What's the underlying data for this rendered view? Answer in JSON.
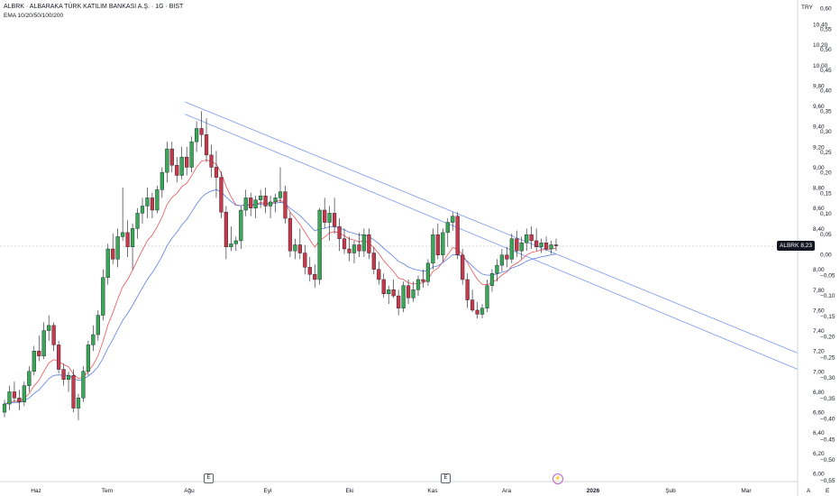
{
  "legend": {
    "title": "ALBRK · ALBARAKA TÜRK KATILIM BANKASI A.Ş. · 1G · BIST",
    "indicator": "EMA 10/20/50/100/200"
  },
  "axis": {
    "currency": "TRY",
    "price_ticks": [
      "10,40",
      "10,20",
      "10,00",
      "9,80",
      "9,60",
      "9,40",
      "9,20",
      "9,00",
      "8,80",
      "8,60",
      "8,40",
      "8,00",
      "7,80",
      "7,60",
      "7,40",
      "7,20",
      "7,00",
      "6,80",
      "6,60",
      "6,40",
      "6,20",
      "6,00"
    ],
    "pct_ticks": [
      "0,60",
      "0,55",
      "0,50",
      "0,45",
      "0,40",
      "0,35",
      "0,30",
      "0,25",
      "0,20",
      "0,15",
      "0,10",
      "0,05",
      "0,00",
      "−0,05",
      "−0,10",
      "−0,15",
      "−0,20",
      "−0,25",
      "−0,30",
      "−0,35",
      "−0,40",
      "−0,45",
      "−0,50",
      "−0,55"
    ],
    "month_labels": [
      "Haz",
      "Tem",
      "Ağu",
      "Eyl",
      "Eki",
      "Kas",
      "Ara",
      "2026",
      "Şub",
      "Mar"
    ]
  },
  "price_tag": {
    "symbol": "ALBRK",
    "value": "8,23"
  },
  "events": {
    "earnings_1": "E",
    "earnings_2": "E",
    "dividend": "⚡"
  },
  "corner": {
    "auto": "A",
    "log": "E"
  },
  "colors": {
    "up": "#26a69a",
    "up_body": "#3aa757",
    "down": "#c6394b",
    "ema_fast": "#e8555a",
    "ema_slow": "#5b7fe0",
    "trend": "#7b97ea"
  },
  "chart_data": {
    "type": "candlestick",
    "symbol": "ALBRK",
    "timeframe": "1G",
    "y_range": [
      6.0,
      10.5
    ],
    "last_price": 8.23,
    "candles": [
      [
        6.6,
        6.72,
        6.55,
        6.68
      ],
      [
        6.68,
        6.86,
        6.62,
        6.8
      ],
      [
        6.8,
        6.9,
        6.7,
        6.74
      ],
      [
        6.74,
        6.82,
        6.62,
        6.7
      ],
      [
        6.7,
        6.9,
        6.66,
        6.86
      ],
      [
        6.86,
        7.05,
        6.8,
        7.0
      ],
      [
        7.0,
        7.25,
        6.96,
        7.2
      ],
      [
        7.2,
        7.35,
        7.1,
        7.15
      ],
      [
        7.15,
        7.48,
        7.12,
        7.4
      ],
      [
        7.4,
        7.55,
        7.3,
        7.45
      ],
      [
        7.45,
        7.48,
        7.2,
        7.26
      ],
      [
        7.26,
        7.3,
        6.98,
        7.02
      ],
      [
        7.02,
        7.08,
        6.86,
        6.92
      ],
      [
        6.92,
        7.0,
        6.8,
        6.96
      ],
      [
        6.96,
        7.02,
        6.6,
        6.64
      ],
      [
        6.64,
        6.78,
        6.52,
        6.74
      ],
      [
        6.74,
        7.05,
        6.7,
        7.0
      ],
      [
        7.0,
        7.3,
        6.96,
        7.26
      ],
      [
        7.26,
        7.45,
        7.2,
        7.36
      ],
      [
        7.36,
        7.6,
        7.3,
        7.55
      ],
      [
        7.55,
        8.0,
        7.5,
        7.92
      ],
      [
        7.92,
        8.25,
        7.85,
        8.2
      ],
      [
        8.2,
        8.35,
        8.05,
        8.1
      ],
      [
        8.1,
        8.4,
        8.02,
        8.32
      ],
      [
        8.32,
        8.8,
        8.28,
        8.36
      ],
      [
        8.36,
        8.48,
        8.12,
        8.22
      ],
      [
        8.22,
        8.45,
        8.0,
        8.4
      ],
      [
        8.4,
        8.6,
        8.3,
        8.55
      ],
      [
        8.55,
        8.7,
        8.45,
        8.62
      ],
      [
        8.62,
        8.8,
        8.5,
        8.7
      ],
      [
        8.7,
        8.75,
        8.5,
        8.58
      ],
      [
        8.58,
        8.82,
        8.55,
        8.78
      ],
      [
        8.78,
        9.0,
        8.7,
        8.95
      ],
      [
        8.95,
        9.25,
        8.85,
        9.18
      ],
      [
        9.18,
        9.25,
        8.95,
        9.02
      ],
      [
        9.02,
        9.1,
        8.85,
        8.92
      ],
      [
        8.92,
        9.2,
        8.88,
        9.1
      ],
      [
        9.1,
        9.2,
        8.92,
        9.0
      ],
      [
        9.0,
        9.3,
        8.95,
        9.25
      ],
      [
        9.25,
        9.45,
        9.15,
        9.38
      ],
      [
        9.38,
        9.55,
        9.2,
        9.32
      ],
      [
        9.32,
        9.48,
        9.05,
        9.12
      ],
      [
        9.12,
        9.22,
        8.9,
        9.0
      ],
      [
        9.0,
        9.16,
        8.7,
        8.9
      ],
      [
        8.9,
        8.96,
        8.5,
        8.56
      ],
      [
        8.56,
        8.62,
        8.1,
        8.22
      ],
      [
        8.22,
        8.42,
        8.18,
        8.25
      ],
      [
        8.25,
        8.32,
        8.18,
        8.28
      ],
      [
        8.28,
        8.62,
        8.2,
        8.58
      ],
      [
        8.58,
        8.78,
        8.52,
        8.7
      ],
      [
        8.7,
        8.75,
        8.52,
        8.6
      ],
      [
        8.6,
        8.72,
        8.5,
        8.68
      ],
      [
        8.68,
        8.78,
        8.6,
        8.72
      ],
      [
        8.72,
        8.8,
        8.55,
        8.62
      ],
      [
        8.62,
        8.72,
        8.5,
        8.66
      ],
      [
        8.66,
        8.74,
        8.56,
        8.7
      ],
      [
        8.7,
        9.0,
        8.65,
        8.76
      ],
      [
        8.76,
        8.82,
        8.45,
        8.5
      ],
      [
        8.5,
        8.56,
        8.12,
        8.18
      ],
      [
        8.18,
        8.3,
        8.1,
        8.24
      ],
      [
        8.24,
        8.4,
        8.1,
        8.16
      ],
      [
        8.16,
        8.24,
        7.95,
        8.02
      ],
      [
        8.02,
        8.12,
        7.88,
        7.95
      ],
      [
        7.95,
        8.05,
        7.82,
        7.9
      ],
      [
        7.9,
        8.6,
        7.85,
        8.58
      ],
      [
        8.58,
        8.7,
        8.4,
        8.46
      ],
      [
        8.46,
        8.62,
        8.28,
        8.55
      ],
      [
        8.55,
        8.7,
        8.35,
        8.42
      ],
      [
        8.42,
        8.5,
        8.18,
        8.3
      ],
      [
        8.3,
        8.4,
        8.15,
        8.2
      ],
      [
        8.2,
        8.32,
        8.08,
        8.16
      ],
      [
        8.16,
        8.28,
        8.06,
        8.24
      ],
      [
        8.24,
        8.36,
        8.12,
        8.18
      ],
      [
        8.18,
        8.4,
        8.12,
        8.34
      ],
      [
        8.34,
        8.4,
        8.1,
        8.16
      ],
      [
        8.16,
        8.22,
        7.95,
        8.0
      ],
      [
        8.0,
        8.08,
        7.85,
        7.9
      ],
      [
        7.9,
        7.96,
        7.72,
        7.76
      ],
      [
        7.76,
        7.84,
        7.66,
        7.8
      ],
      [
        7.8,
        7.9,
        7.72,
        7.74
      ],
      [
        7.74,
        7.8,
        7.55,
        7.62
      ],
      [
        7.62,
        7.88,
        7.58,
        7.84
      ],
      [
        7.84,
        7.9,
        7.66,
        7.72
      ],
      [
        7.72,
        7.88,
        7.68,
        7.8
      ],
      [
        7.8,
        7.94,
        7.74,
        7.9
      ],
      [
        7.9,
        8.0,
        7.82,
        7.88
      ],
      [
        7.88,
        8.1,
        7.84,
        8.06
      ],
      [
        8.06,
        8.4,
        8.0,
        8.34
      ],
      [
        8.34,
        8.45,
        8.1,
        8.14
      ],
      [
        8.14,
        8.4,
        8.08,
        8.36
      ],
      [
        8.36,
        8.5,
        8.22,
        8.46
      ],
      [
        8.46,
        8.56,
        8.38,
        8.52
      ],
      [
        8.52,
        8.56,
        8.1,
        8.14
      ],
      [
        8.14,
        8.2,
        7.85,
        7.9
      ],
      [
        7.9,
        7.96,
        7.62,
        7.7
      ],
      [
        7.7,
        7.8,
        7.58,
        7.6
      ],
      [
        7.6,
        7.68,
        7.52,
        7.56
      ],
      [
        7.56,
        7.66,
        7.52,
        7.62
      ],
      [
        7.62,
        7.9,
        7.58,
        7.84
      ],
      [
        7.84,
        8.0,
        7.78,
        7.96
      ],
      [
        7.96,
        8.1,
        7.88,
        8.04
      ],
      [
        8.04,
        8.2,
        7.98,
        8.14
      ],
      [
        8.14,
        8.22,
        8.02,
        8.1
      ],
      [
        8.1,
        8.35,
        8.06,
        8.3
      ],
      [
        8.3,
        8.38,
        8.12,
        8.18
      ],
      [
        8.18,
        8.32,
        8.1,
        8.26
      ],
      [
        8.26,
        8.4,
        8.18,
        8.34
      ],
      [
        8.34,
        8.42,
        8.2,
        8.28
      ],
      [
        8.28,
        8.4,
        8.18,
        8.22
      ],
      [
        8.22,
        8.3,
        8.16,
        8.26
      ],
      [
        8.26,
        8.32,
        8.18,
        8.2
      ],
      [
        8.2,
        8.28,
        8.15,
        8.24
      ],
      [
        8.24,
        8.3,
        8.18,
        8.23
      ]
    ],
    "trendlines": [
      {
        "from": [
          0.232,
          9.64
        ],
        "to": [
          1.0,
          7.18
        ]
      },
      {
        "from": [
          0.232,
          9.52
        ],
        "to": [
          1.0,
          7.02
        ]
      }
    ],
    "series": [
      {
        "name": "EMA 10"
      },
      {
        "name": "EMA 20"
      }
    ]
  }
}
